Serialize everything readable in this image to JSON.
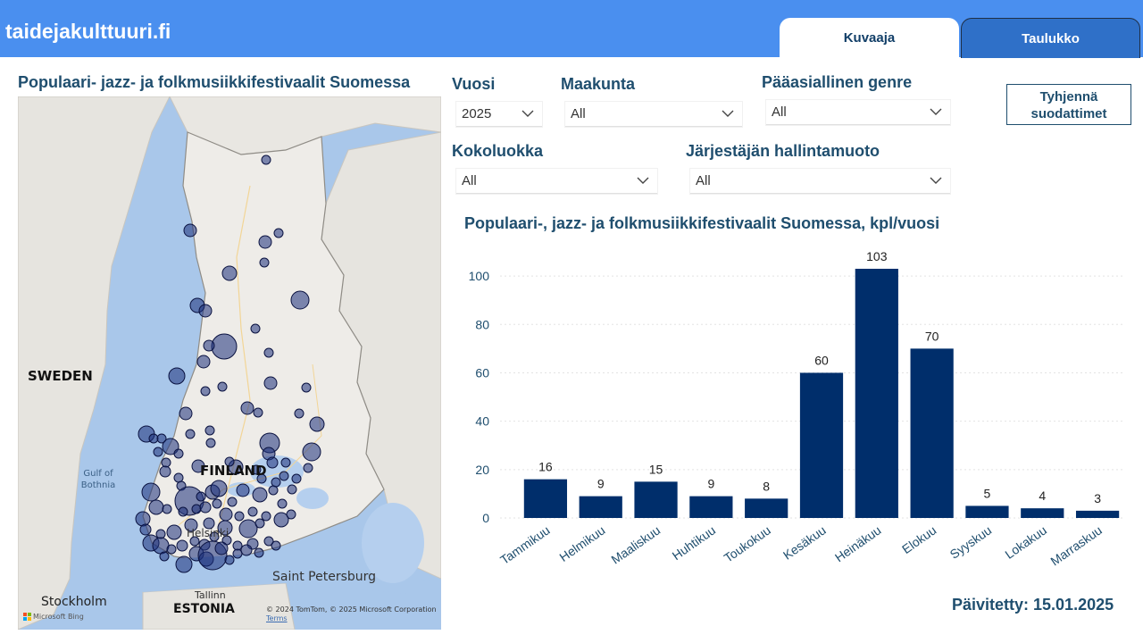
{
  "header": {
    "site_title": "taidejakulttuuri.fi",
    "tabs": [
      {
        "label": "Kuvaaja",
        "active": true
      },
      {
        "label": "Taulukko",
        "active": false
      }
    ]
  },
  "map": {
    "title": "Populaari- jazz- ja folkmusiikkifestivaalit Suomessa",
    "labels": {
      "sweden": "SWEDEN",
      "finland": "FINLAND",
      "estonia": "ESTONIA",
      "gulf": "Gulf of Bothnia",
      "stockholm": "Stockholm",
      "tallinn": "Tallinn",
      "helsinki": "Helsinki",
      "st_petersburg": "Saint Petersburg"
    },
    "copyright": "© 2024 TomTom, © 2025 Microsoft Corporation",
    "terms": "Terms",
    "provider": "Microsoft Bing"
  },
  "filters": {
    "vuosi": {
      "label": "Vuosi",
      "value": "2025"
    },
    "maakunta": {
      "label": "Maakunta",
      "value": "All"
    },
    "genre": {
      "label": "Pääasiallinen genre",
      "value": "All"
    },
    "kokoluokka": {
      "label": "Kokoluokka",
      "value": "All"
    },
    "hallintamuoto": {
      "label": "Järjestäjän hallintamuoto",
      "value": "All"
    },
    "clear_button": "Tyhjennä suodattimet"
  },
  "colors": {
    "header_bg": "#4a8fef",
    "tab_inactive": "#2f70c8",
    "title_color": "#1f4e6e",
    "bar_color": "#002e6b",
    "bubble_fill": "#1c2f7a"
  },
  "chart_data": {
    "type": "bar",
    "title": "Populaari-, jazz- ja folkmusiikkifestivaalit Suomessa, kpl/vuosi",
    "categories": [
      "Tammikuu",
      "Helmikuu",
      "Maaliskuu",
      "Huhtikuu",
      "Toukokuu",
      "Kesäkuu",
      "Heinäkuu",
      "Elokuu",
      "Syyskuu",
      "Lokakuu",
      "Marraskuu"
    ],
    "values": [
      16,
      9,
      15,
      9,
      8,
      60,
      103,
      70,
      5,
      4,
      3
    ],
    "ylim": [
      0,
      110
    ],
    "yticks": [
      0,
      20,
      40,
      60,
      80,
      100
    ],
    "grid": true,
    "data_labels": true
  },
  "footer": {
    "updated": "Päivitetty: 15.01.2025"
  }
}
